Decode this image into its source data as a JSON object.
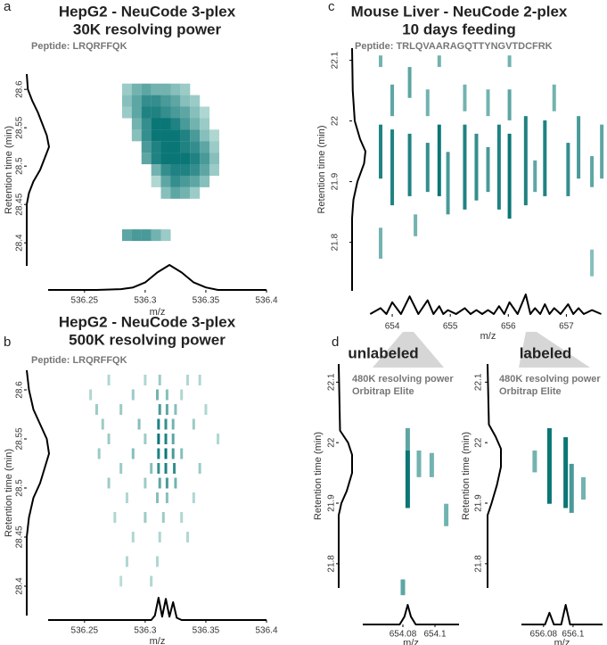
{
  "chart_data": [
    {
      "type": "heatmap",
      "panel_label": "a",
      "title": "HepG2 - NeuCode 3-plex",
      "subtitle": "30K resolving power",
      "annotations": [
        "Peptide: LRQRFFQK"
      ],
      "x_label": "m/z",
      "y_label": "Retention time (min)",
      "colors": [
        "#d8efe9",
        "#0b7676"
      ],
      "xlim": [
        536.22,
        536.4
      ],
      "xticks": [
        536.25,
        536.3,
        536.35,
        536.4
      ],
      "ylim": [
        28.37,
        28.62
      ],
      "yticks": [
        28.4,
        28.45,
        28.5,
        28.55,
        28.6
      ],
      "rows": [
        {
          "y": 28.6,
          "x": [
            536.285,
            536.293,
            536.301,
            536.309,
            536.317,
            536.325,
            536.333
          ],
          "values": [
            0.3,
            0.5,
            0.6,
            0.5,
            0.5,
            0.4,
            0.3
          ]
        },
        {
          "y": 28.585,
          "x": [
            536.285,
            536.293,
            536.301,
            536.309,
            536.317,
            536.325,
            536.333,
            536.341
          ],
          "values": [
            0.4,
            0.6,
            0.8,
            0.8,
            0.7,
            0.6,
            0.4,
            0.3
          ]
        },
        {
          "y": 28.57,
          "x": [
            536.285,
            536.293,
            536.301,
            536.309,
            536.317,
            536.325,
            536.333,
            536.341,
            536.349
          ],
          "values": [
            0.3,
            0.6,
            0.9,
            0.9,
            0.8,
            0.7,
            0.6,
            0.4,
            0.2
          ]
        },
        {
          "y": 28.555,
          "x": [
            536.293,
            536.301,
            536.309,
            536.317,
            536.325,
            536.333,
            536.341,
            536.349
          ],
          "values": [
            0.5,
            0.8,
            1,
            1,
            0.9,
            0.7,
            0.5,
            0.3
          ]
        },
        {
          "y": 28.54,
          "x": [
            536.293,
            536.301,
            536.309,
            536.317,
            536.325,
            536.333,
            536.341,
            536.349,
            536.357
          ],
          "values": [
            0.4,
            0.8,
            1,
            1,
            1,
            0.9,
            0.7,
            0.4,
            0.2
          ]
        },
        {
          "y": 28.525,
          "x": [
            536.301,
            536.309,
            536.317,
            536.325,
            536.333,
            536.341,
            536.349,
            536.357
          ],
          "values": [
            0.7,
            0.9,
            1,
            1,
            0.9,
            0.8,
            0.6,
            0.3
          ]
        },
        {
          "y": 28.51,
          "x": [
            536.301,
            536.309,
            536.317,
            536.325,
            536.333,
            536.341,
            536.349,
            536.357
          ],
          "values": [
            0.6,
            0.9,
            1,
            1,
            1,
            0.9,
            0.7,
            0.4
          ]
        },
        {
          "y": 28.495,
          "x": [
            536.309,
            536.317,
            536.325,
            536.333,
            536.341,
            536.349,
            536.357
          ],
          "values": [
            0.5,
            0.8,
            0.9,
            0.9,
            0.8,
            0.6,
            0.3
          ]
        },
        {
          "y": 28.48,
          "x": [
            536.309,
            536.317,
            536.325,
            536.333,
            536.341,
            536.349
          ],
          "values": [
            0.2,
            0.6,
            0.8,
            0.7,
            0.6,
            0.4
          ]
        },
        {
          "y": 28.465,
          "x": [
            536.317,
            536.325,
            536.333,
            536.341
          ],
          "values": [
            0.4,
            0.6,
            0.5,
            0.3
          ]
        },
        {
          "y": 28.41,
          "x": [
            536.285,
            536.293,
            536.301,
            536.309,
            536.317
          ],
          "values": [
            0.6,
            0.7,
            0.7,
            0.5,
            0.3
          ]
        }
      ],
      "chromatogram": {
        "y": [
          28.62,
          28.6,
          28.585,
          28.57,
          28.555,
          28.54,
          28.525,
          28.51,
          28.495,
          28.48,
          28.465,
          28.45,
          28.37
        ],
        "values": [
          0,
          0.05,
          0.25,
          0.5,
          0.7,
          0.9,
          1,
          0.8,
          0.6,
          0.3,
          0.1,
          0,
          0
        ]
      },
      "spectrum": {
        "x": [
          536.22,
          536.26,
          536.28,
          536.29,
          536.3,
          536.31,
          536.32,
          536.33,
          536.34,
          536.35,
          536.36,
          536.4
        ],
        "values": [
          0,
          0,
          0.03,
          0.1,
          0.3,
          0.7,
          1,
          0.7,
          0.3,
          0.1,
          0,
          0
        ]
      }
    },
    {
      "type": "heatmap",
      "panel_label": "b",
      "title": "HepG2 - NeuCode 3-plex",
      "subtitle": "500K resolving power",
      "annotations": [
        "Peptide: LRQRFFQK"
      ],
      "x_label": "m/z",
      "y_label": "Retention time (min)",
      "colors": [
        "#d8efe9",
        "#0b7676"
      ],
      "xlim": [
        536.22,
        536.4
      ],
      "xticks": [
        536.25,
        536.3,
        536.35,
        536.4
      ],
      "ylim": [
        28.37,
        28.62
      ],
      "yticks": [
        28.4,
        28.45,
        28.5,
        28.55,
        28.6
      ],
      "rows": [
        {
          "y": 28.61,
          "x": [
            536.27,
            536.3,
            536.312,
            536.335,
            536.345
          ],
          "values": [
            0.2,
            0.2,
            0.3,
            0.2,
            0.2
          ]
        },
        {
          "y": 28.595,
          "x": [
            536.255,
            536.29,
            536.31,
            536.318,
            536.33
          ],
          "values": [
            0.2,
            0.3,
            0.5,
            0.4,
            0.2
          ]
        },
        {
          "y": 28.58,
          "x": [
            536.26,
            536.28,
            536.312,
            536.318,
            536.325,
            536.35
          ],
          "values": [
            0.3,
            0.3,
            0.7,
            0.6,
            0.4,
            0.2
          ]
        },
        {
          "y": 28.565,
          "x": [
            536.265,
            536.295,
            536.311,
            536.317,
            536.323,
            536.34
          ],
          "values": [
            0.3,
            0.4,
            0.9,
            0.8,
            0.5,
            0.3
          ]
        },
        {
          "y": 28.55,
          "x": [
            536.27,
            536.3,
            536.311,
            536.317,
            536.323,
            536.36
          ],
          "values": [
            0.3,
            0.3,
            1,
            0.9,
            0.6,
            0.2
          ]
        },
        {
          "y": 28.535,
          "x": [
            536.262,
            536.29,
            536.311,
            536.317,
            536.323,
            536.33
          ],
          "values": [
            0.3,
            0.4,
            0.9,
            1,
            0.7,
            0.4
          ]
        },
        {
          "y": 28.52,
          "x": [
            536.28,
            536.305,
            536.311,
            536.317,
            536.324,
            536.345
          ],
          "values": [
            0.3,
            0.4,
            0.8,
            0.9,
            0.8,
            0.3
          ]
        },
        {
          "y": 28.505,
          "x": [
            536.27,
            536.3,
            536.312,
            536.318,
            536.325
          ],
          "values": [
            0.3,
            0.3,
            0.6,
            0.7,
            0.5
          ]
        },
        {
          "y": 28.49,
          "x": [
            536.285,
            536.31,
            536.318,
            536.34
          ],
          "values": [
            0.2,
            0.4,
            0.4,
            0.2
          ]
        },
        {
          "y": 28.47,
          "x": [
            536.275,
            536.3,
            536.315,
            536.33
          ],
          "values": [
            0.2,
            0.3,
            0.3,
            0.2
          ]
        },
        {
          "y": 28.45,
          "x": [
            536.29,
            536.312,
            536.335
          ],
          "values": [
            0.2,
            0.2,
            0.2
          ]
        },
        {
          "y": 28.425,
          "x": [
            536.285,
            536.31
          ],
          "values": [
            0.2,
            0.2
          ]
        },
        {
          "y": 28.405,
          "x": [
            536.28,
            536.305
          ],
          "values": [
            0.15,
            0.2
          ]
        }
      ],
      "chromatogram": {
        "y": [
          28.62,
          28.6,
          28.58,
          28.565,
          28.55,
          28.535,
          28.52,
          28.505,
          28.49,
          28.47,
          28.45,
          28.37
        ],
        "values": [
          0,
          0.1,
          0.3,
          0.6,
          0.9,
          1,
          0.8,
          0.6,
          0.3,
          0.1,
          0,
          0
        ]
      },
      "spectrum": {
        "x": [
          536.22,
          536.305,
          536.308,
          536.311,
          536.314,
          536.317,
          536.32,
          536.323,
          536.326,
          536.33,
          536.4
        ],
        "values": [
          0,
          0,
          0.2,
          1,
          0.15,
          0.95,
          0.15,
          0.8,
          0.1,
          0,
          0
        ]
      }
    },
    {
      "type": "heatmap",
      "panel_label": "c",
      "title": "Mouse Liver - NeuCode 2-plex",
      "subtitle": "10 days feeding",
      "annotations": [
        "Peptide: TRLQVAARAGQTTYNGVTDCFRK"
      ],
      "x_label": "m/z",
      "y_label": "Retention time (min)",
      "colors": [
        "#d8efe9",
        "#0b7676"
      ],
      "xlim": [
        653.6,
        657.7
      ],
      "xticks": [
        654,
        655,
        656,
        657
      ],
      "ylim": [
        21.72,
        22.12
      ],
      "yticks": [
        21.8,
        21.9,
        22,
        22.1
      ],
      "segments": {
        "x": [
          653.8,
          653.8,
          653.8,
          654.0,
          654.0,
          654.3,
          654.3,
          654.4,
          654.61,
          654.61,
          654.81,
          654.81,
          654.96,
          655.25,
          655.25,
          655.45,
          655.65,
          655.65,
          655.84,
          656.02,
          656.02,
          656.02,
          656.3,
          656.46,
          656.63,
          656.79,
          657.03,
          657.21,
          657.44,
          657.44,
          657.61
        ],
        "y_top": [
          22.108,
          21.994,
          21.824,
          22.06,
          21.986,
          22.089,
          21.979,
          21.846,
          22.052,
          21.964,
          22.108,
          21.994,
          21.949,
          22.06,
          21.994,
          21.979,
          22.052,
          21.957,
          21.994,
          22.108,
          22.052,
          21.979,
          22.008,
          21.935,
          22.001,
          22.06,
          21.964,
          22.008,
          21.942,
          21.788,
          21.994
        ],
        "y_bottom": [
          22.089,
          21.905,
          21.773,
          22.008,
          21.861,
          22.038,
          21.876,
          21.81,
          22.008,
          21.883,
          22.089,
          21.876,
          21.846,
          22.016,
          21.854,
          21.869,
          22.008,
          21.883,
          21.854,
          22.089,
          22.001,
          21.839,
          21.861,
          21.883,
          21.876,
          22.016,
          21.876,
          21.905,
          21.891,
          21.744,
          21.905
        ],
        "values": [
          0.5,
          0.9,
          0.5,
          0.6,
          0.9,
          0.6,
          0.9,
          0.5,
          0.5,
          0.8,
          0.5,
          1,
          0.7,
          0.5,
          0.9,
          0.8,
          0.5,
          0.7,
          0.9,
          0.5,
          0.6,
          1,
          0.9,
          0.6,
          0.9,
          0.5,
          0.8,
          0.7,
          0.6,
          0.4,
          0.6
        ]
      },
      "chromatogram": {
        "y": [
          22.12,
          22.05,
          22.0,
          21.97,
          21.95,
          21.93,
          21.9,
          21.87,
          21.84,
          21.72
        ],
        "values": [
          0,
          0.05,
          0.2,
          0.6,
          1,
          0.9,
          0.4,
          0.1,
          0,
          0
        ]
      },
      "spectrum": {
        "x": [
          653.62,
          653.8,
          653.9,
          654.0,
          654.15,
          654.3,
          654.45,
          654.61,
          654.71,
          654.81,
          654.88,
          654.96,
          655.1,
          655.25,
          655.35,
          655.45,
          655.55,
          655.65,
          655.75,
          655.84,
          655.93,
          656.02,
          656.16,
          656.3,
          656.38,
          656.46,
          656.55,
          656.63,
          656.71,
          656.79,
          656.9,
          657.03,
          657.12,
          657.21,
          657.3,
          657.44,
          657.6
        ],
        "values": [
          0,
          0.3,
          0,
          0.6,
          0,
          0.9,
          0,
          0.7,
          0,
          0.4,
          0,
          0.2,
          0,
          0.3,
          0,
          0.2,
          0,
          0.2,
          0,
          0.4,
          0,
          0.6,
          0,
          1,
          0,
          0.3,
          0,
          0.5,
          0,
          0.3,
          0,
          0.5,
          0,
          0.3,
          0,
          0.2,
          0
        ]
      }
    },
    {
      "type": "heatmap",
      "panel_label": "d",
      "group_label": "unlabeled",
      "annotations": [
        "480K resolving power",
        "Orbitrap Elite"
      ],
      "x_label": "m/z",
      "y_label": "Retention time (min)",
      "colors": [
        "#d8efe9",
        "#0b7676"
      ],
      "xlim": [
        654.055,
        654.115
      ],
      "xticks": [
        654.08,
        654.1
      ],
      "ylim": [
        21.76,
        22.13
      ],
      "yticks": [
        21.8,
        21.9,
        22,
        22.1
      ],
      "segments": {
        "x": [
          654.083,
          654.083,
          654.09,
          654.098,
          654.107,
          654.08
        ],
        "y_top": [
          22.024,
          21.987,
          21.987,
          21.983,
          21.899,
          21.774
        ],
        "y_bottom": [
          21.987,
          21.892,
          21.943,
          21.943,
          21.862,
          21.748
        ],
        "values": [
          0.6,
          1,
          0.5,
          0.5,
          0.5,
          0.6
        ]
      },
      "chromatogram": {
        "y": [
          22.13,
          22.02,
          22.0,
          21.98,
          21.95,
          21.92,
          21.9,
          21.88,
          21.76
        ],
        "values": [
          0,
          0.1,
          0.7,
          1,
          1,
          0.6,
          0.2,
          0,
          0
        ]
      },
      "spectrum": {
        "x": [
          654.055,
          654.078,
          654.081,
          654.083,
          654.085,
          654.088,
          654.115
        ],
        "values": [
          0,
          0,
          0.4,
          1,
          0.4,
          0,
          0
        ]
      }
    },
    {
      "type": "heatmap",
      "group_label": "labeled",
      "annotations": [
        "480K resolving power",
        "Orbitrap Elite"
      ],
      "x_label": "m/z",
      "y_label": "Retention time (min)",
      "colors": [
        "#d8efe9",
        "#0b7676"
      ],
      "xlim": [
        656.065,
        656.12
      ],
      "xticks": [
        656.08,
        656.1
      ],
      "ylim": [
        21.76,
        22.13
      ],
      "yticks": [
        21.8,
        21.9,
        22,
        22.1
      ],
      "segments": {
        "x": [
          656.074,
          656.084,
          656.095,
          656.099,
          656.107
        ],
        "y_top": [
          21.987,
          22.024,
          22.009,
          21.965,
          21.943
        ],
        "y_bottom": [
          21.951,
          21.899,
          21.892,
          21.884,
          21.906
        ],
        "values": [
          0.5,
          1,
          1,
          0.7,
          0.5
        ]
      },
      "chromatogram": {
        "y": [
          22.13,
          22.03,
          22.01,
          21.99,
          21.96,
          21.93,
          21.9,
          21.88,
          21.76
        ],
        "values": [
          0,
          0.1,
          0.6,
          1,
          1,
          0.7,
          0.3,
          0,
          0
        ]
      },
      "spectrum": {
        "x": [
          656.065,
          656.081,
          656.084,
          656.087,
          656.092,
          656.095,
          656.098,
          656.12
        ],
        "values": [
          0,
          0,
          0.6,
          0,
          0,
          1,
          0,
          0
        ]
      }
    }
  ]
}
